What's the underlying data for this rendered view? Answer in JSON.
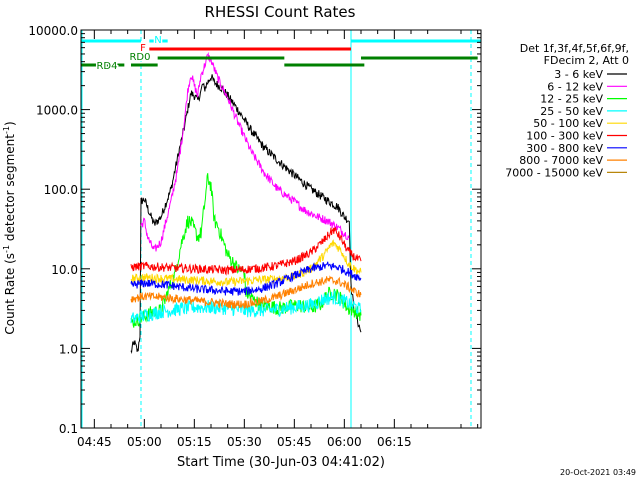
{
  "chart_data": {
    "type": "line",
    "title": "RHESSI Count Rates",
    "xlabel": "Start Time (30-Jun-03 04:41:02)",
    "ylabel_main": "Count Rate (s",
    "ylabel_sup": "-1",
    "ylabel_rest": " detector segment",
    "ylabel_sup2": "-1",
    "ylabel_close": ")",
    "y_scale": "log",
    "ylim": [
      0.1,
      10000
    ],
    "xlim_min": [
      281,
      401
    ],
    "x_unit": "minutes after 00:00 UT",
    "y_ticks": [
      {
        "v": 10000,
        "label": "10000.0"
      },
      {
        "v": 1000,
        "label": "1000.0"
      },
      {
        "v": 100,
        "label": "100.0"
      },
      {
        "v": 10,
        "label": "10.0"
      },
      {
        "v": 1,
        "label": "1.0"
      },
      {
        "v": 0.1,
        "label": "0.1"
      }
    ],
    "x_ticks": [
      {
        "m": 285,
        "label": "04:45"
      },
      {
        "m": 300,
        "label": "05:00"
      },
      {
        "m": 315,
        "label": "05:15"
      },
      {
        "m": 330,
        "label": "05:30"
      },
      {
        "m": 345,
        "label": "05:45"
      },
      {
        "m": 360,
        "label": "06:00"
      },
      {
        "m": 375,
        "label": "06:15"
      }
    ],
    "legend_header": [
      "Det 1f,3f,4f,5f,6f,9f,",
      "FDecim 2, Att 0"
    ],
    "series": [
      {
        "name": "3 - 6 keV",
        "color": "#000000",
        "points": [
          [
            296,
            0.9
          ],
          [
            297,
            1.2
          ],
          [
            298,
            0.9
          ],
          [
            298.7,
            1.5
          ],
          [
            299,
            70
          ],
          [
            300,
            75
          ],
          [
            302,
            45
          ],
          [
            303,
            36
          ],
          [
            305,
            45
          ],
          [
            308,
            100
          ],
          [
            310,
            250
          ],
          [
            312,
            600
          ],
          [
            313,
            1000
          ],
          [
            314,
            1600
          ],
          [
            315,
            1500
          ],
          [
            316,
            1300
          ],
          [
            317,
            1700
          ],
          [
            317.5,
            2100
          ],
          [
            318,
            1800
          ],
          [
            319,
            2200
          ],
          [
            320,
            2600
          ],
          [
            321,
            2200
          ],
          [
            323,
            1900
          ],
          [
            325,
            1500
          ],
          [
            328,
            1000
          ],
          [
            332,
            550
          ],
          [
            336,
            330
          ],
          [
            340,
            230
          ],
          [
            345,
            150
          ],
          [
            350,
            100
          ],
          [
            355,
            72
          ],
          [
            358,
            60
          ],
          [
            360,
            45
          ],
          [
            361.5,
            40
          ],
          [
            362,
            6
          ],
          [
            363,
            3
          ],
          [
            364,
            2.2
          ],
          [
            365,
            1.6
          ]
        ]
      },
      {
        "name": "6 - 12 keV",
        "color": "#ff00ff",
        "points": [
          [
            299,
            35
          ],
          [
            300,
            40
          ],
          [
            301,
            25
          ],
          [
            302,
            20
          ],
          [
            303,
            17
          ],
          [
            305,
            22
          ],
          [
            308,
            70
          ],
          [
            310,
            180
          ],
          [
            312,
            700
          ],
          [
            313,
            1700
          ],
          [
            314,
            2800
          ],
          [
            315,
            2000
          ],
          [
            316,
            1500
          ],
          [
            317,
            2700
          ],
          [
            318,
            3500
          ],
          [
            319,
            4700
          ],
          [
            320,
            4200
          ],
          [
            322,
            2500
          ],
          [
            325,
            1400
          ],
          [
            328,
            700
          ],
          [
            332,
            300
          ],
          [
            336,
            160
          ],
          [
            340,
            100
          ],
          [
            345,
            70
          ],
          [
            348,
            55
          ],
          [
            352,
            45
          ],
          [
            355,
            40
          ],
          [
            358,
            33
          ],
          [
            360,
            28
          ],
          [
            361.5,
            25
          ]
        ]
      },
      {
        "name": "12 - 25 keV",
        "color": "#00ff00",
        "points": [
          [
            296,
            2.1
          ],
          [
            298,
            2.3
          ],
          [
            300,
            2.5
          ],
          [
            302,
            2.8
          ],
          [
            305,
            3.0
          ],
          [
            307,
            5
          ],
          [
            309,
            8
          ],
          [
            311,
            20
          ],
          [
            313,
            40
          ],
          [
            314,
            38
          ],
          [
            316,
            25
          ],
          [
            317,
            28
          ],
          [
            318,
            60
          ],
          [
            319,
            140
          ],
          [
            320,
            110
          ],
          [
            321,
            40
          ],
          [
            322,
            35
          ],
          [
            325,
            15
          ],
          [
            328,
            10
          ],
          [
            330,
            9
          ],
          [
            330.5,
            5
          ],
          [
            333,
            4
          ],
          [
            335,
            3.5
          ],
          [
            338,
            3.4
          ],
          [
            340,
            3.2
          ],
          [
            343,
            3.3
          ],
          [
            346,
            3.5
          ],
          [
            350,
            3.2
          ],
          [
            353,
            3.6
          ],
          [
            355,
            4.8
          ],
          [
            357,
            5.0
          ],
          [
            359,
            4.2
          ],
          [
            361,
            3.2
          ],
          [
            363,
            3.0
          ],
          [
            365,
            2.6
          ]
        ]
      },
      {
        "name": "25 - 50 keV",
        "color": "#00ffff",
        "points": [
          [
            296,
            2.3
          ],
          [
            300,
            2.6
          ],
          [
            305,
            2.9
          ],
          [
            310,
            3.1
          ],
          [
            315,
            3.3
          ],
          [
            320,
            3.3
          ],
          [
            325,
            3.2
          ],
          [
            330,
            3.0
          ],
          [
            335,
            3.0
          ],
          [
            340,
            3.1
          ],
          [
            345,
            3.3
          ],
          [
            350,
            3.5
          ],
          [
            354,
            4.2
          ],
          [
            357,
            4.4
          ],
          [
            360,
            3.9
          ],
          [
            363,
            3.4
          ],
          [
            365,
            3.0
          ]
        ]
      },
      {
        "name": "50 - 100 keV",
        "color": "#ffd800",
        "points": [
          [
            296,
            7.5
          ],
          [
            300,
            7.8
          ],
          [
            305,
            7.6
          ],
          [
            310,
            7.4
          ],
          [
            315,
            7.2
          ],
          [
            320,
            7.0
          ],
          [
            325,
            6.8
          ],
          [
            330,
            7.0
          ],
          [
            335,
            7.3
          ],
          [
            340,
            7.5
          ],
          [
            345,
            8.0
          ],
          [
            350,
            10
          ],
          [
            354,
            15
          ],
          [
            356,
            20
          ],
          [
            357,
            21
          ],
          [
            359,
            17
          ],
          [
            361,
            12
          ],
          [
            363,
            10
          ],
          [
            365,
            9.0
          ]
        ]
      },
      {
        "name": "100 - 300 keV",
        "color": "#ff0000",
        "points": [
          [
            296,
            10.5
          ],
          [
            300,
            10.8
          ],
          [
            305,
            10.5
          ],
          [
            310,
            10.2
          ],
          [
            315,
            10.0
          ],
          [
            320,
            9.8
          ],
          [
            325,
            9.6
          ],
          [
            330,
            9.8
          ],
          [
            335,
            10.2
          ],
          [
            340,
            11
          ],
          [
            345,
            12.5
          ],
          [
            350,
            16
          ],
          [
            354,
            23
          ],
          [
            356,
            29
          ],
          [
            357,
            31
          ],
          [
            359,
            24
          ],
          [
            361,
            17
          ],
          [
            363,
            14
          ],
          [
            365,
            12.5
          ]
        ]
      },
      {
        "name": "300 - 800 keV",
        "color": "#0000ff",
        "points": [
          [
            296,
            6.2
          ],
          [
            300,
            6.6
          ],
          [
            305,
            6.4
          ],
          [
            310,
            6.0
          ],
          [
            315,
            5.6
          ],
          [
            320,
            5.4
          ],
          [
            325,
            5.2
          ],
          [
            330,
            5.2
          ],
          [
            335,
            5.6
          ],
          [
            340,
            6.6
          ],
          [
            345,
            8.2
          ],
          [
            350,
            10
          ],
          [
            355,
            11
          ],
          [
            358,
            10.5
          ],
          [
            361,
            9.2
          ],
          [
            363,
            8.3
          ],
          [
            365,
            7.6
          ]
        ]
      },
      {
        "name": "800 - 7000 keV",
        "color": "#ff8000",
        "points": [
          [
            296,
            4.2
          ],
          [
            300,
            4.5
          ],
          [
            305,
            4.4
          ],
          [
            310,
            4.2
          ],
          [
            315,
            4.0
          ],
          [
            320,
            3.8
          ],
          [
            325,
            3.6
          ],
          [
            330,
            3.6
          ],
          [
            335,
            3.9
          ],
          [
            340,
            4.5
          ],
          [
            345,
            5.4
          ],
          [
            350,
            6.5
          ],
          [
            355,
            7.2
          ],
          [
            358,
            7.0
          ],
          [
            361,
            6.0
          ],
          [
            363,
            5.2
          ],
          [
            365,
            4.7
          ]
        ]
      },
      {
        "name": "7000 - 15000 keV",
        "color": "#b8860b",
        "points": []
      }
    ],
    "attenuator_bars": [
      {
        "label": "N",
        "color": "#00ffff",
        "segments": [
          [
            281,
            299
          ],
          [
            301.5,
            307
          ],
          [
            362,
            401
          ]
        ]
      },
      {
        "label": "F",
        "color": "#ff0000",
        "segments": [
          [
            301.5,
            362
          ]
        ]
      },
      {
        "label": "RD0",
        "color": "#008000",
        "segments": [
          [
            304,
            342
          ],
          [
            365,
            400
          ]
        ]
      },
      {
        "label": "RD4",
        "color": "#008000",
        "segments": [
          [
            281,
            294
          ],
          [
            296,
            304
          ],
          [
            342,
            366
          ]
        ]
      }
    ],
    "markers": [
      {
        "m": 281.3,
        "style": "solid",
        "color": "#00ffff"
      },
      {
        "m": 299.0,
        "style": "dashed",
        "color": "#00ffff"
      },
      {
        "m": 362.0,
        "style": "solid",
        "color": "#00ffff"
      },
      {
        "m": 398.0,
        "style": "dashed",
        "color": "#00ffff"
      }
    ]
  },
  "footer_date": "20-Oct-2021 03:49"
}
